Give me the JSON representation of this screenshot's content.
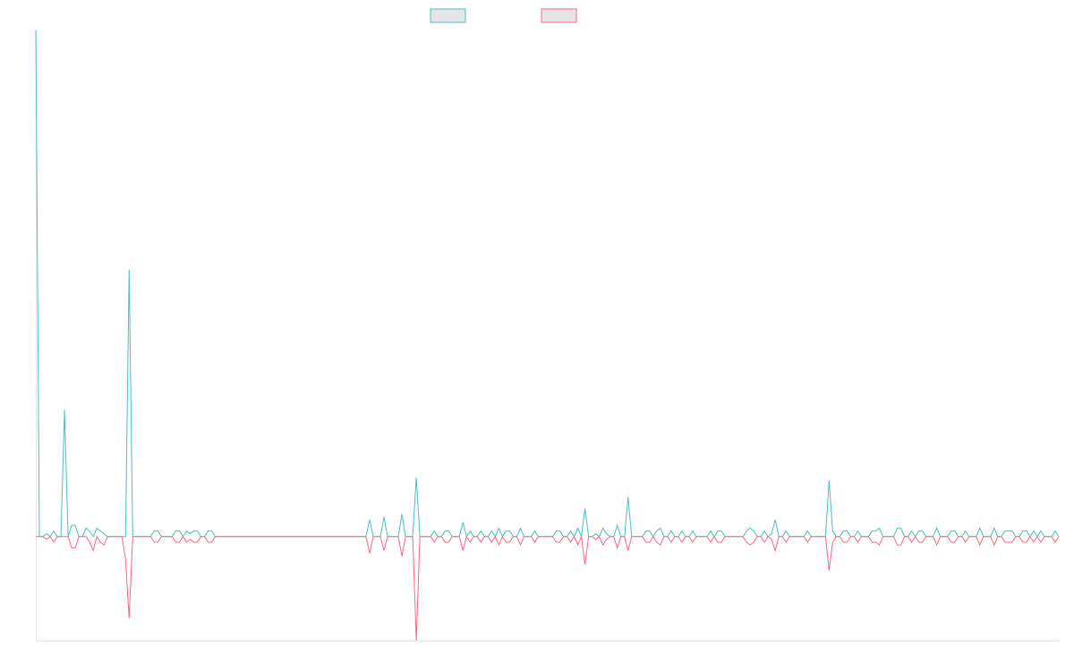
{
  "chart_data": {
    "type": "line",
    "title": "",
    "xlabel": "",
    "ylabel": "",
    "legend_position": "top",
    "grid": false,
    "ylim": [
      -37,
      180
    ],
    "series": [
      {
        "color": "#4bc0c0",
        "fill": "#e6e6e6",
        "values": [
          180,
          0,
          0,
          1,
          0,
          2,
          0,
          0,
          45,
          0,
          4,
          4,
          0,
          0,
          3,
          2,
          0,
          3,
          2,
          1,
          0,
          0,
          0,
          0,
          0,
          0,
          95,
          0,
          0,
          0,
          0,
          0,
          0,
          2,
          2,
          0,
          0,
          0,
          0,
          2,
          2,
          0,
          2,
          1,
          2,
          2,
          0,
          0,
          2,
          2,
          0,
          0,
          0,
          0,
          0,
          0,
          0,
          0,
          0,
          0,
          0,
          0,
          0,
          0,
          0,
          0,
          0,
          0,
          0,
          0,
          0,
          0,
          0,
          0,
          0,
          0,
          0,
          0,
          0,
          0,
          0,
          0,
          0,
          0,
          0,
          0,
          0,
          0,
          0,
          0,
          0,
          0,
          0,
          6,
          0,
          0,
          0,
          7,
          0,
          0,
          0,
          0,
          8,
          0,
          0,
          0,
          21,
          0,
          0,
          0,
          0,
          2,
          0,
          0,
          2,
          2,
          0,
          0,
          0,
          5,
          0,
          2,
          0,
          0,
          2,
          0,
          0,
          2,
          0,
          3,
          0,
          2,
          2,
          0,
          0,
          3,
          0,
          0,
          0,
          2,
          0,
          0,
          0,
          0,
          0,
          2,
          2,
          0,
          0,
          2,
          0,
          3,
          0,
          10,
          0,
          0,
          1,
          0,
          3,
          1,
          0,
          0,
          4,
          0,
          0,
          14,
          0,
          0,
          0,
          0,
          2,
          2,
          0,
          2,
          3,
          0,
          0,
          2,
          0,
          0,
          2,
          0,
          0,
          2,
          0,
          0,
          0,
          0,
          2,
          0,
          2,
          2,
          0,
          0,
          0,
          0,
          0,
          0,
          2,
          3,
          2,
          0,
          0,
          2,
          0,
          1,
          6,
          0,
          0,
          2,
          0,
          0,
          0,
          0,
          0,
          2,
          0,
          0,
          0,
          0,
          0,
          20,
          2,
          0,
          0,
          2,
          2,
          0,
          0,
          2,
          0,
          0,
          0,
          2,
          2,
          3,
          0,
          0,
          0,
          0,
          3,
          3,
          0,
          0,
          2,
          0,
          2,
          2,
          0,
          0,
          0,
          3,
          0,
          0,
          0,
          2,
          2,
          0,
          0,
          2,
          0,
          0,
          0,
          3,
          0,
          0,
          0,
          3,
          0,
          0,
          2,
          2,
          2,
          0,
          0,
          2,
          2,
          0,
          2,
          0,
          2,
          0,
          0,
          0,
          2,
          0
        ]
      },
      {
        "color": "#ff6384",
        "fill": "#e6e6e6",
        "values": [
          0,
          0,
          0,
          -1,
          0,
          -2,
          0,
          0,
          0,
          0,
          -4,
          -4,
          0,
          0,
          0,
          -2,
          -5,
          0,
          -2,
          -3,
          0,
          0,
          0,
          0,
          0,
          -8,
          -29,
          0,
          0,
          0,
          0,
          0,
          0,
          -2,
          -2,
          0,
          0,
          0,
          0,
          -2,
          -2,
          0,
          -2,
          -1,
          -2,
          -2,
          0,
          0,
          -2,
          -2,
          0,
          0,
          0,
          0,
          0,
          0,
          0,
          0,
          0,
          0,
          0,
          0,
          0,
          0,
          0,
          0,
          0,
          0,
          0,
          0,
          0,
          0,
          0,
          0,
          0,
          0,
          0,
          0,
          0,
          0,
          0,
          0,
          0,
          0,
          0,
          0,
          0,
          0,
          0,
          0,
          0,
          0,
          0,
          -6,
          0,
          0,
          0,
          -5,
          0,
          0,
          0,
          0,
          -7,
          0,
          0,
          0,
          -37,
          0,
          0,
          0,
          0,
          -2,
          0,
          0,
          -2,
          -2,
          0,
          0,
          0,
          -5,
          0,
          -2,
          0,
          0,
          -2,
          0,
          0,
          -2,
          0,
          -3,
          0,
          -2,
          -2,
          0,
          0,
          -3,
          0,
          0,
          0,
          -2,
          0,
          0,
          0,
          0,
          0,
          -2,
          -2,
          0,
          0,
          -2,
          0,
          -3,
          0,
          -10,
          0,
          0,
          -1,
          0,
          -3,
          -1,
          0,
          0,
          -4,
          0,
          0,
          -5,
          0,
          0,
          0,
          0,
          -2,
          -2,
          0,
          -2,
          -3,
          0,
          0,
          -2,
          0,
          0,
          -2,
          0,
          0,
          -2,
          0,
          0,
          0,
          0,
          -2,
          0,
          -2,
          -2,
          0,
          0,
          0,
          0,
          0,
          0,
          -2,
          -3,
          -2,
          0,
          0,
          -2,
          0,
          -1,
          -5,
          0,
          0,
          -2,
          0,
          0,
          0,
          0,
          0,
          -2,
          0,
          0,
          0,
          0,
          0,
          -12,
          -2,
          0,
          0,
          -2,
          -2,
          0,
          0,
          -2,
          0,
          0,
          0,
          -2,
          -2,
          -3,
          0,
          0,
          0,
          0,
          -3,
          -3,
          0,
          0,
          -2,
          0,
          -2,
          -2,
          0,
          0,
          0,
          -3,
          0,
          0,
          0,
          -2,
          -2,
          0,
          0,
          -2,
          0,
          0,
          0,
          -3,
          0,
          0,
          0,
          -3,
          0,
          0,
          -2,
          -2,
          -2,
          0,
          0,
          -2,
          -2,
          0,
          -2,
          0,
          -2,
          0,
          0,
          0,
          -2,
          0
        ]
      }
    ]
  }
}
